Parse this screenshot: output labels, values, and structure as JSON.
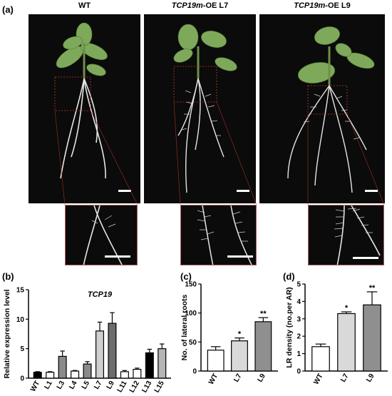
{
  "panel_a": {
    "label": "(a)",
    "photos": [
      {
        "title_italic": "",
        "title_rest": "WT"
      },
      {
        "title_italic": "TCP19m",
        "title_rest": "-OE L7"
      },
      {
        "title_italic": "TCP19m",
        "title_rest": "-OE L9"
      }
    ]
  },
  "colors": {
    "background": "#0b0b0b",
    "leaf": "#7fa95a",
    "root": "#e8e8e8",
    "zoom_box": "#c0392b"
  },
  "chart_data": [
    {
      "panel": "(b)",
      "type": "bar",
      "title": "TCP19",
      "ylabel": "Relative expression level",
      "xlabel": "",
      "ylim": [
        0,
        15
      ],
      "yticks": [
        0,
        5,
        10,
        15
      ],
      "categories": [
        "WT",
        "L1",
        "L3",
        "L4",
        "L5",
        "L7",
        "L9",
        "L11",
        "L12",
        "L13",
        "L15"
      ],
      "values": [
        1.0,
        1.0,
        3.7,
        1.2,
        2.4,
        8.0,
        9.3,
        1.1,
        1.5,
        4.3,
        5.0
      ],
      "errors": [
        0.1,
        0.1,
        0.9,
        0.1,
        0.4,
        1.5,
        1.8,
        0.2,
        0.2,
        0.6,
        0.8
      ],
      "bar_colors": [
        "#000000",
        "#ffffff",
        "#8a8a8a",
        "#ffffff",
        "#8a8a8a",
        "#cfcfcf",
        "#6d6d6d",
        "#ffffff",
        "#ffffff",
        "#000000",
        "#b5b5b5"
      ],
      "grid": false
    },
    {
      "panel": "(c)",
      "type": "bar",
      "title": "",
      "ylabel": "No. of lateral roots",
      "xlabel": "",
      "ylim": [
        0,
        150
      ],
      "yticks": [
        0,
        50,
        100,
        150
      ],
      "categories": [
        "WT",
        "L7",
        "L9"
      ],
      "values": [
        36,
        52,
        85
      ],
      "errors": [
        6,
        5,
        7
      ],
      "significance": [
        "",
        "*",
        "**"
      ],
      "bar_colors": [
        "#ffffff",
        "#d9d9d9",
        "#8f8f8f"
      ],
      "grid": false
    },
    {
      "panel": "(d)",
      "type": "bar",
      "title": "",
      "ylabel": "LR density (no.per AR)",
      "xlabel": "",
      "ylim": [
        0,
        5
      ],
      "yticks": [
        0,
        1,
        2,
        3,
        4,
        5
      ],
      "categories": [
        "WT",
        "L7",
        "L9"
      ],
      "values": [
        1.4,
        3.3,
        3.8
      ],
      "errors": [
        0.15,
        0.1,
        0.75
      ],
      "significance": [
        "",
        "*",
        "**"
      ],
      "bar_colors": [
        "#ffffff",
        "#d9d9d9",
        "#8f8f8f"
      ],
      "grid": false
    }
  ]
}
